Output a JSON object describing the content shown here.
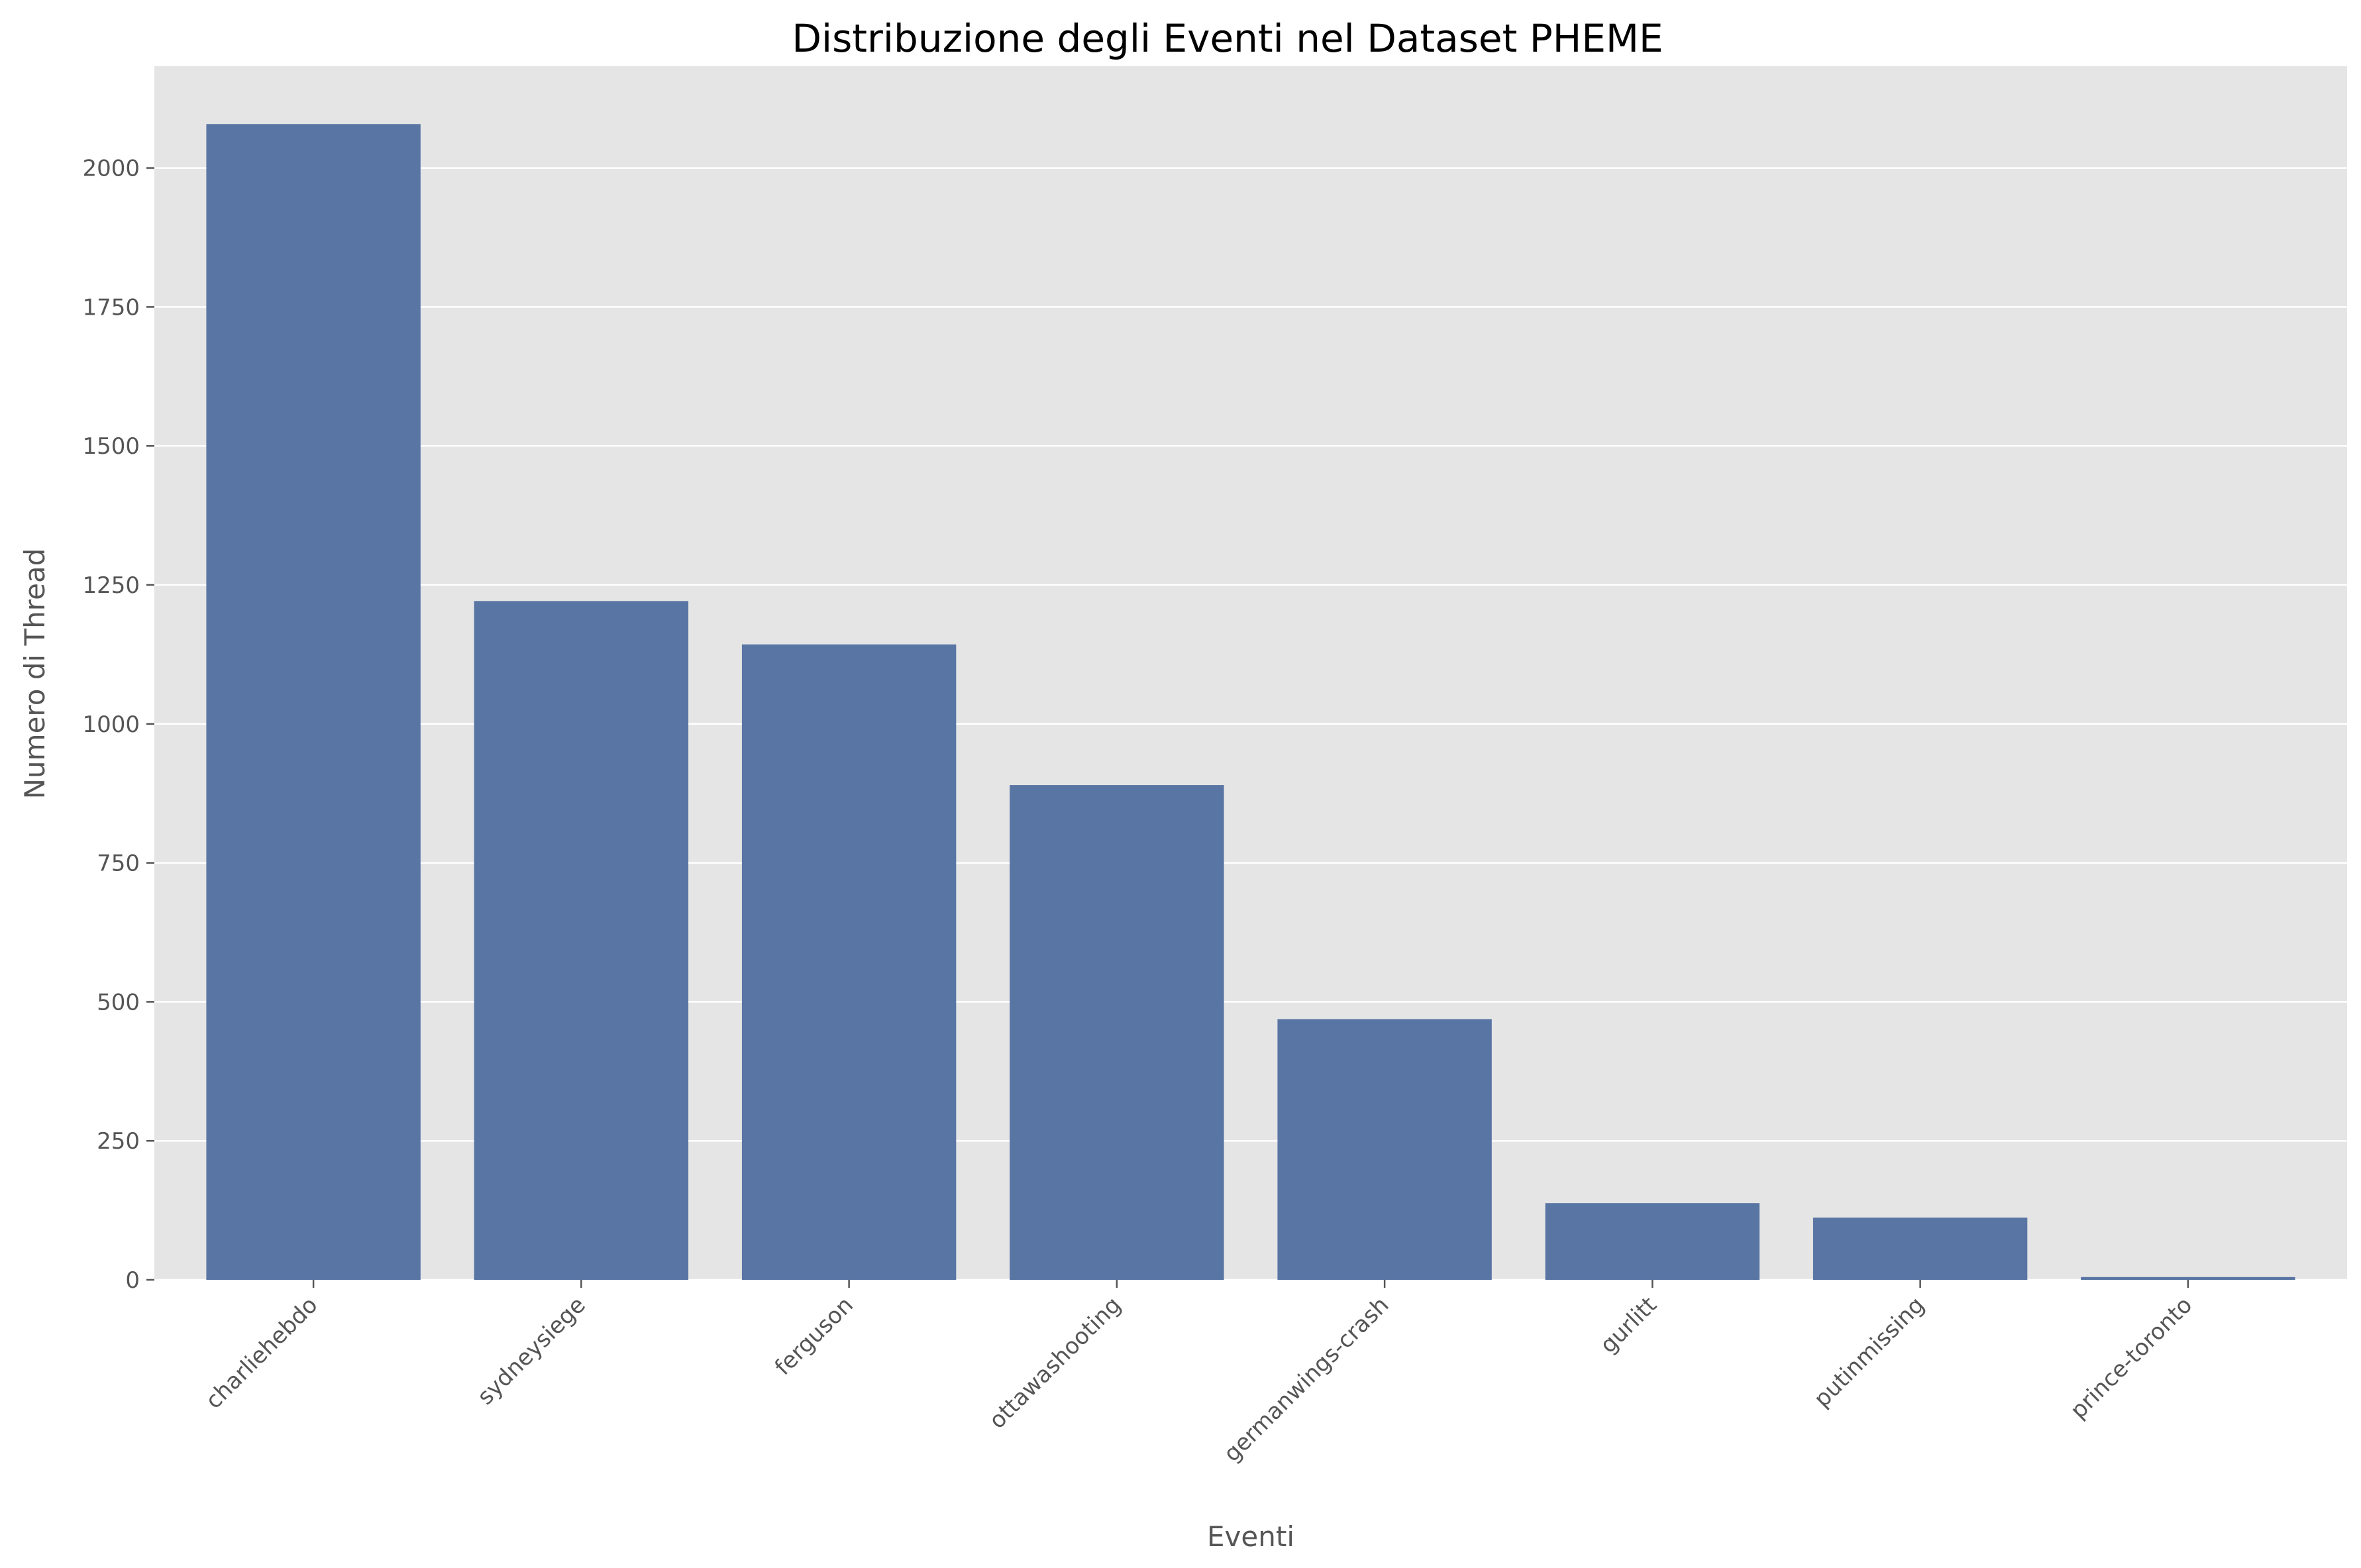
{
  "chart_data": {
    "type": "bar",
    "title": "Distribuzione degli Eventi nel Dataset PHEME",
    "xlabel": "Eventi",
    "ylabel": "Numero di Thread",
    "categories": [
      "charliehebdo",
      "sydneysiege",
      "ferguson",
      "ottawashooting",
      "germanwings-crash",
      "gurlitt",
      "putinmissing",
      "prince-toronto"
    ],
    "values": [
      2079,
      1221,
      1143,
      890,
      469,
      138,
      112,
      5
    ],
    "ylim": [
      0,
      2183
    ],
    "yticks": [
      0,
      250,
      500,
      750,
      1000,
      1250,
      1500,
      1750,
      2000
    ],
    "grid": true,
    "colors": {
      "bar": "#5975a4",
      "background": "#e5e5e5",
      "grid": "#ffffff"
    }
  }
}
